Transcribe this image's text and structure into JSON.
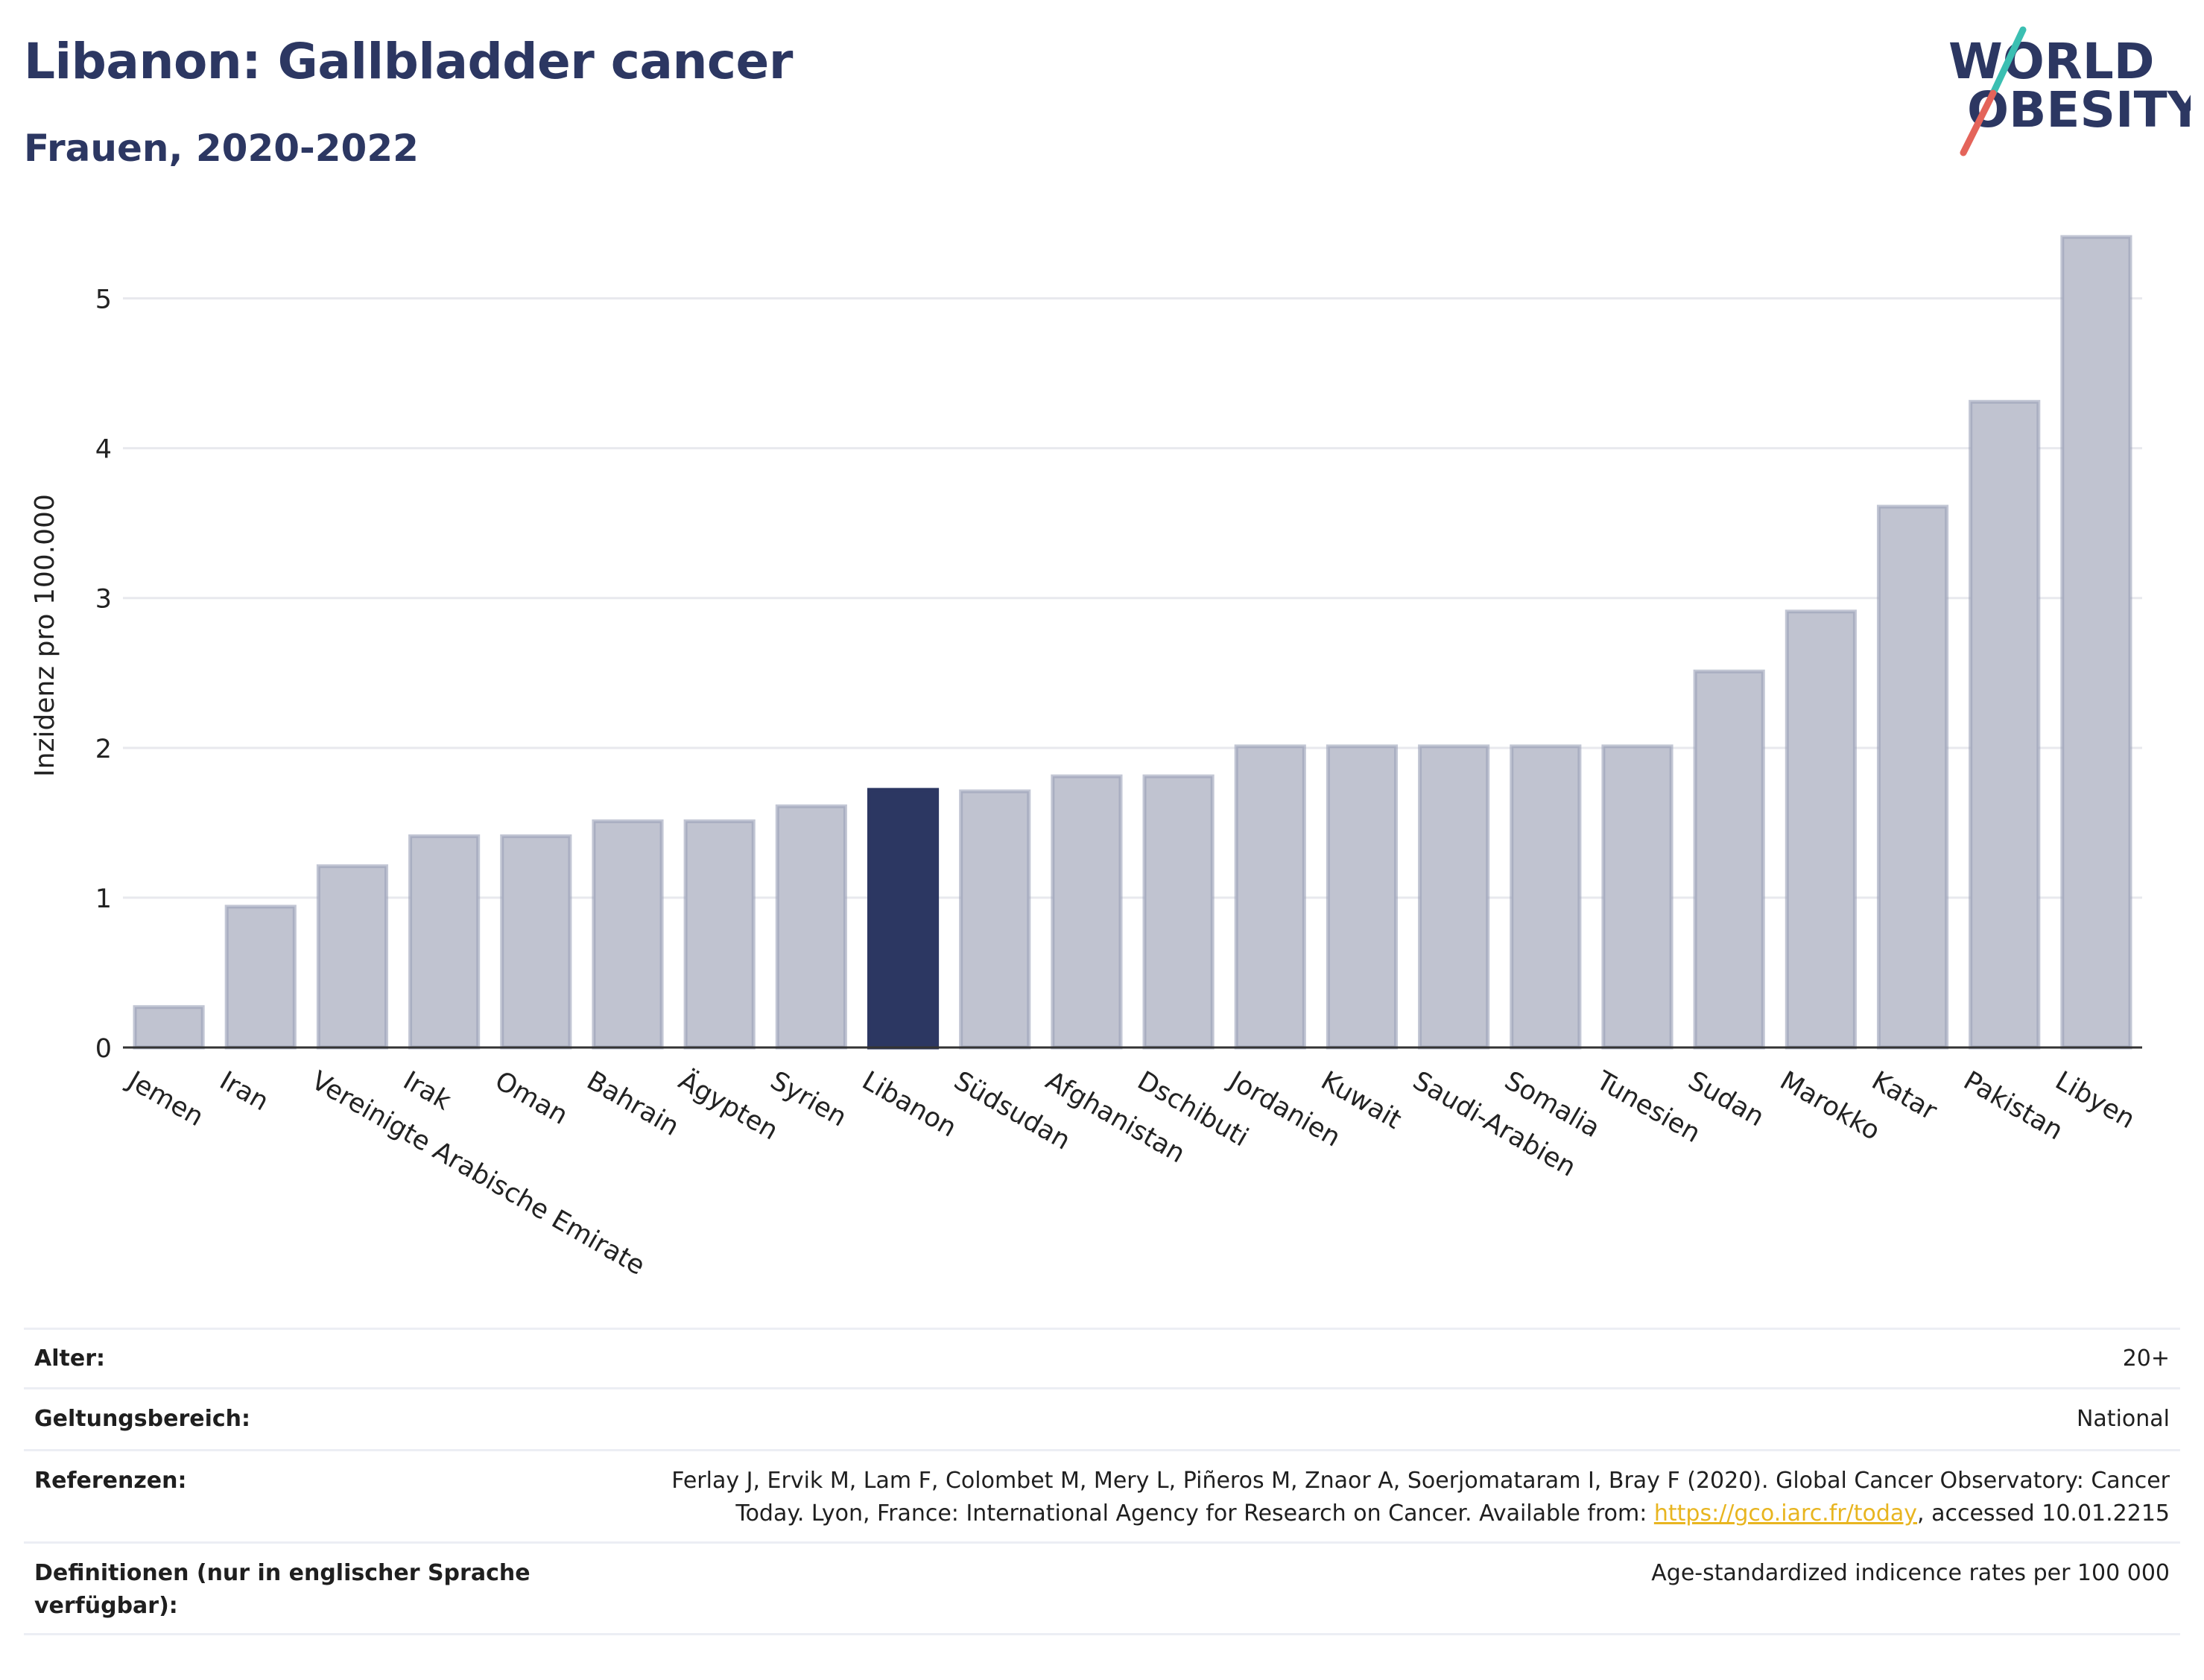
{
  "header": {
    "title": "Libanon: Gallbladder cancer",
    "subtitle": "Frauen, 2020-2022"
  },
  "logo": {
    "line1": "WORLD",
    "line2": "OBESITY"
  },
  "colors": {
    "highlight": "#2c3762",
    "bar": "#c0c3d0",
    "bar_border": "#9aa0b8",
    "grid": "#e8e9ee"
  },
  "chart_data": {
    "type": "bar",
    "ylabel": "Inzidenz pro 100.000",
    "ylim": [
      0,
      5.5
    ],
    "yticks": [
      0,
      1,
      2,
      3,
      4,
      5
    ],
    "grid": true,
    "highlight": "Libanon",
    "categories": [
      "Jemen",
      "Iran",
      "Vereinigte Arabische Emirate",
      "Irak",
      "Oman",
      "Bahrain",
      "Ägypten",
      "Syrien",
      "Libanon",
      "Südsudan",
      "Afghanistan",
      "Dschibuti",
      "Jordanien",
      "Kuwait",
      "Saudi-Arabien",
      "Somalia",
      "Tunesien",
      "Sudan",
      "Marokko",
      "Katar",
      "Pakistan",
      "Libyen"
    ],
    "values": [
      0.27,
      0.94,
      1.21,
      1.41,
      1.41,
      1.51,
      1.51,
      1.61,
      1.72,
      1.71,
      1.81,
      1.81,
      2.01,
      2.01,
      2.01,
      2.01,
      2.01,
      2.51,
      2.91,
      3.61,
      4.31,
      5.41
    ]
  },
  "meta": [
    {
      "key": "Alter:",
      "value": "20+"
    },
    {
      "key": "Geltungsbereich:",
      "value": "National"
    },
    {
      "key": "Referenzen:",
      "value_line1": "Ferlay J, Ervik M, Lam F, Colombet M, Mery L, Piñeros M, Znaor A, Soerjomataram I, Bray F (2020). Global Cancer Observatory: Cancer",
      "value_line2_pre": "Today. Lyon, France: International Agency for Research on Cancer. Available from: ",
      "link": "https://gco.iarc.fr/today",
      "value_line2_post": ", accessed 10.01.2215"
    },
    {
      "key": "Definitionen (nur in englischer Sprache verfügbar):",
      "value": "Age-standardized indicence rates per 100 000"
    }
  ]
}
